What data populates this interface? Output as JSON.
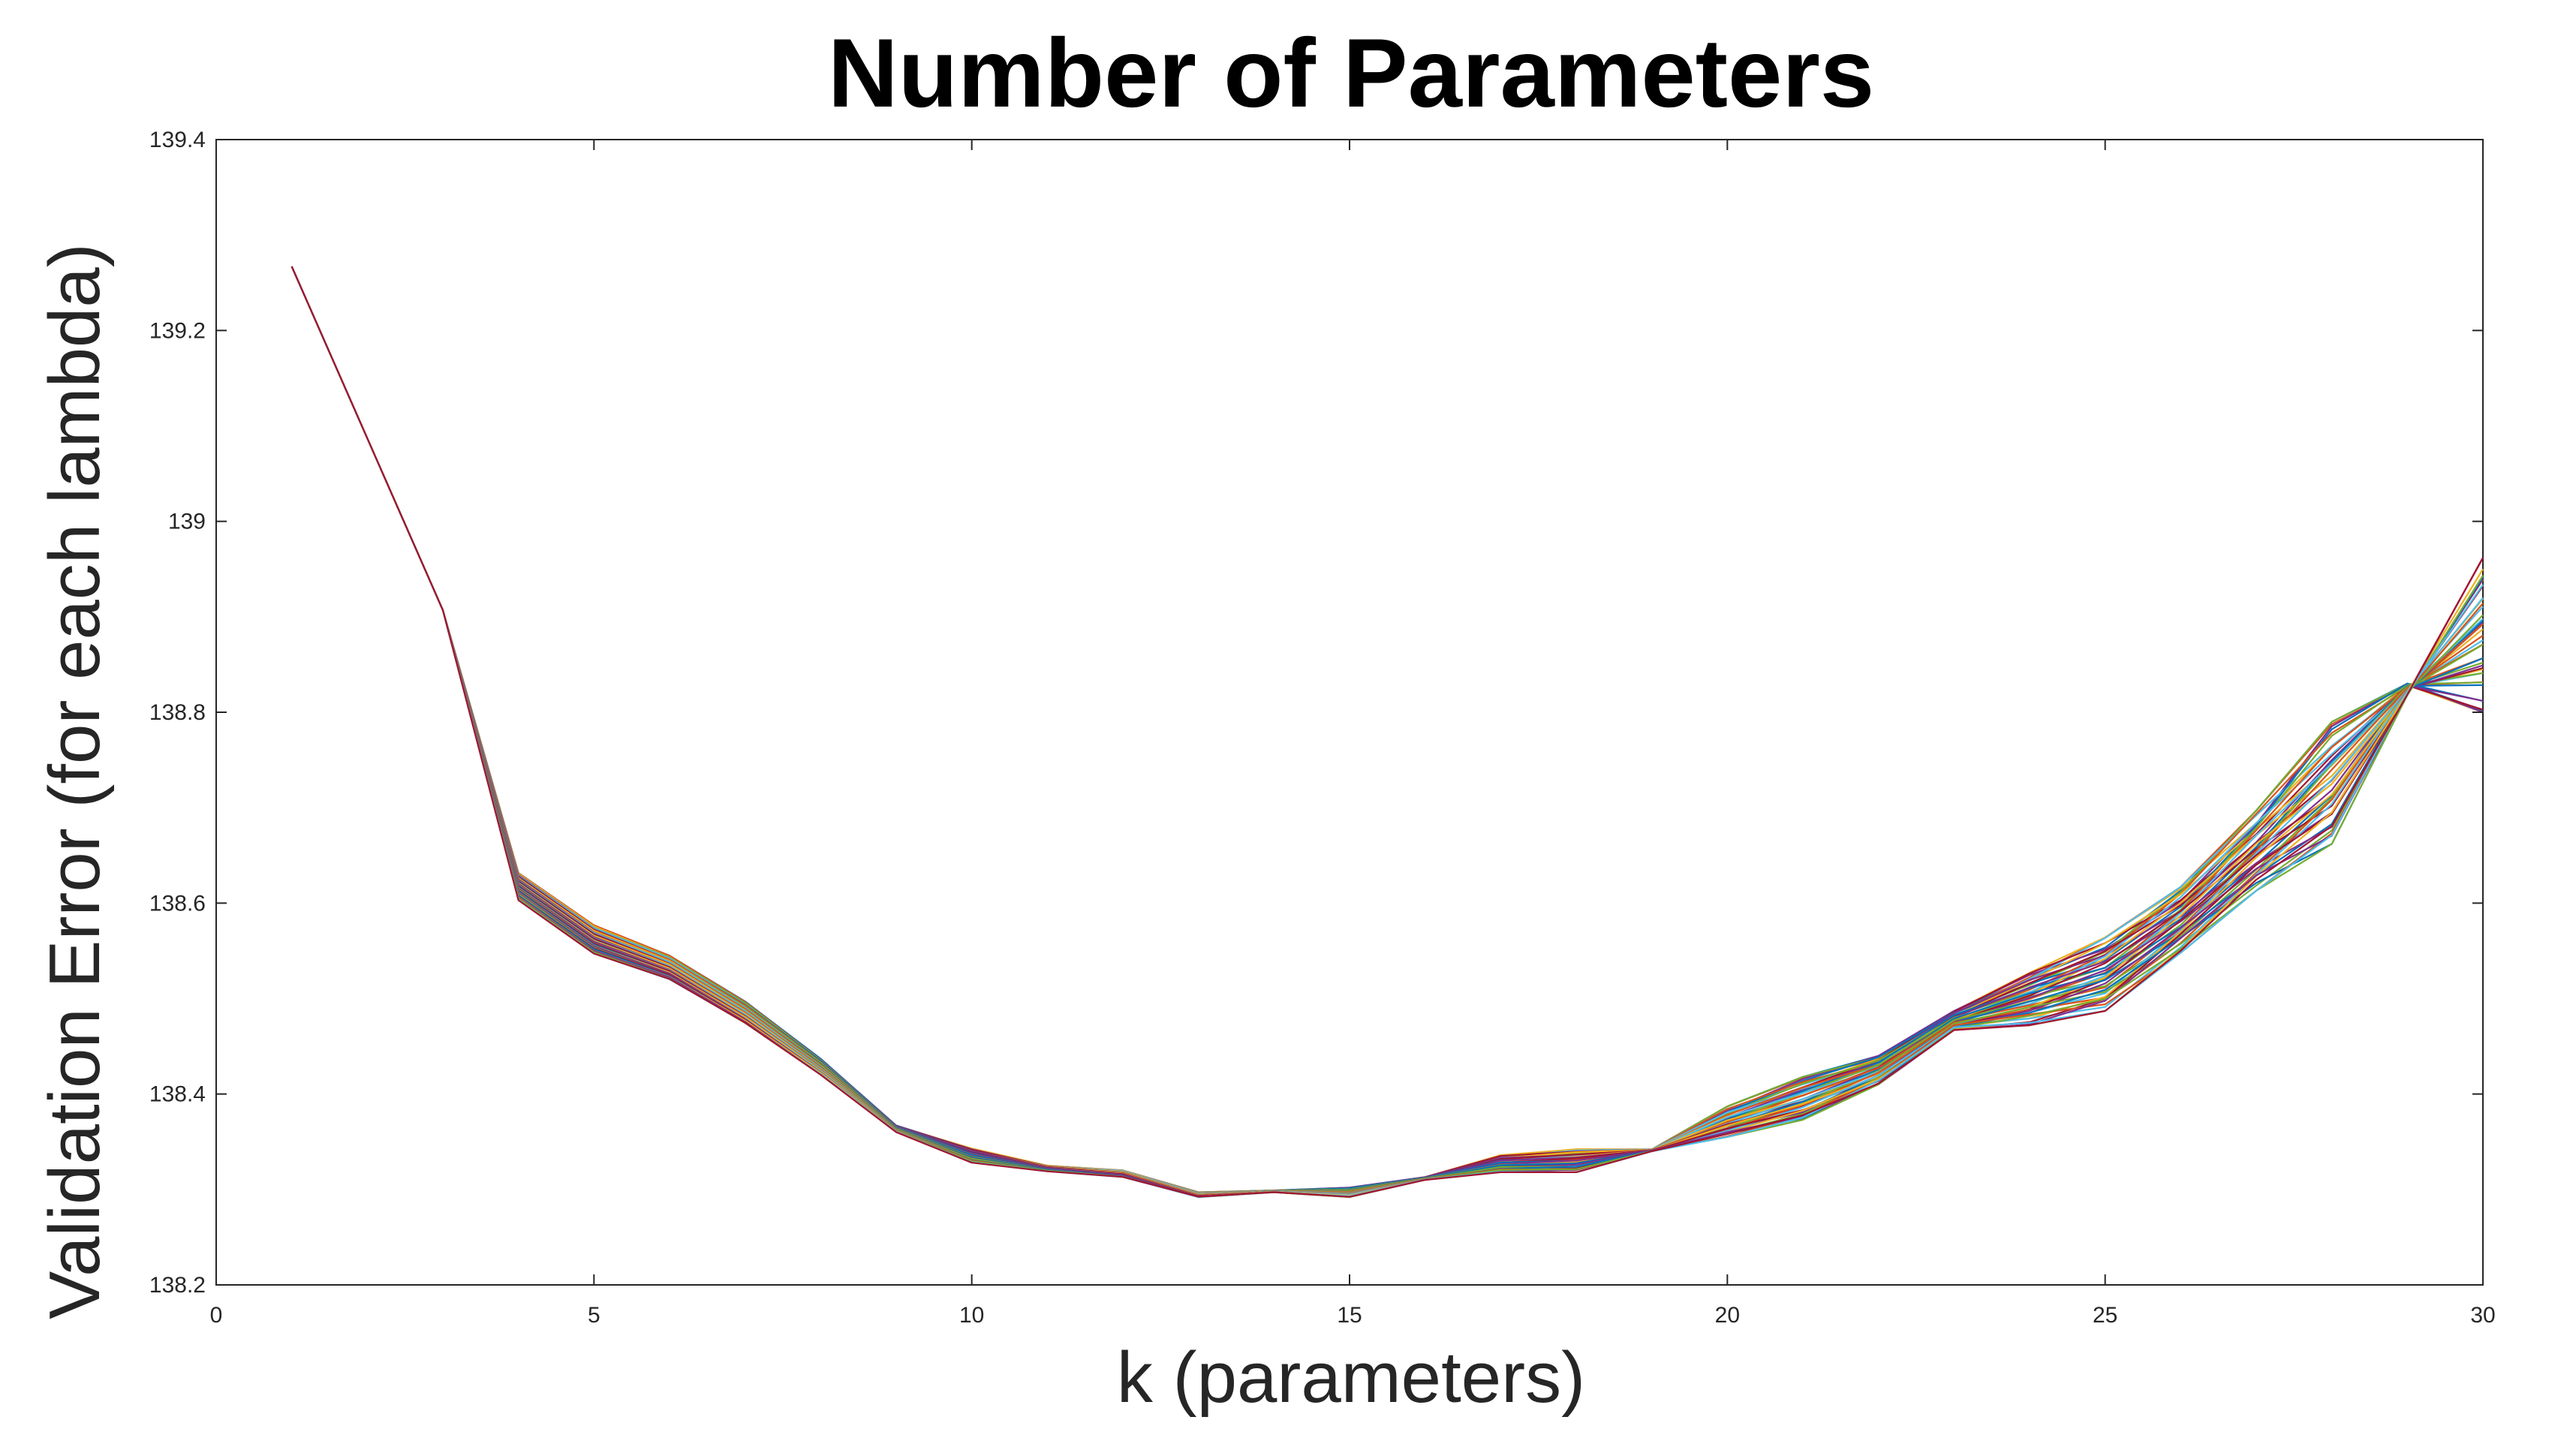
{
  "chart_data": {
    "type": "line",
    "title": "Number of Parameters",
    "xlabel": "k (parameters)",
    "ylabel": "Validation Error (for each lambda)",
    "xlim": [
      0,
      30
    ],
    "ylim": [
      138.2,
      139.4
    ],
    "xticks": [
      "0",
      "5",
      "10",
      "15",
      "20",
      "25",
      "30"
    ],
    "yticks": [
      "138.2",
      "138.4",
      "138.6",
      "138.8",
      "139",
      "139.2",
      "139.4"
    ],
    "grid": false,
    "legend": "none",
    "series_colors": [
      "#0072BD",
      "#D95319",
      "#EDB120",
      "#7E2F8E",
      "#77AC30",
      "#4DBEEE",
      "#A2142F"
    ],
    "band": {
      "description_note": "",
      "x": [
        1,
        3,
        4,
        5,
        6,
        7,
        8,
        9,
        10,
        11,
        12,
        13,
        14,
        15,
        16,
        17,
        18,
        19,
        20,
        21,
        22,
        23,
        24,
        25,
        26,
        27,
        28,
        29,
        30
      ],
      "series_a": [
        139.267,
        138.907,
        138.632,
        138.577,
        138.545,
        138.497,
        138.437,
        138.367,
        138.343,
        138.325,
        138.32,
        138.297,
        138.299,
        138.302,
        138.313,
        138.336,
        138.342,
        138.342,
        138.387,
        138.418,
        138.44,
        138.487,
        138.527,
        138.564,
        138.617,
        138.697,
        138.79,
        138.83,
        138.8
      ],
      "series_b": [
        139.267,
        138.907,
        138.603,
        138.547,
        138.52,
        138.474,
        138.42,
        138.36,
        138.328,
        138.319,
        138.313,
        138.292,
        138.297,
        138.292,
        138.31,
        138.318,
        138.318,
        138.34,
        138.355,
        138.373,
        138.41,
        138.467,
        138.472,
        138.487,
        138.548,
        138.613,
        138.662,
        138.818,
        138.962
      ]
    }
  }
}
